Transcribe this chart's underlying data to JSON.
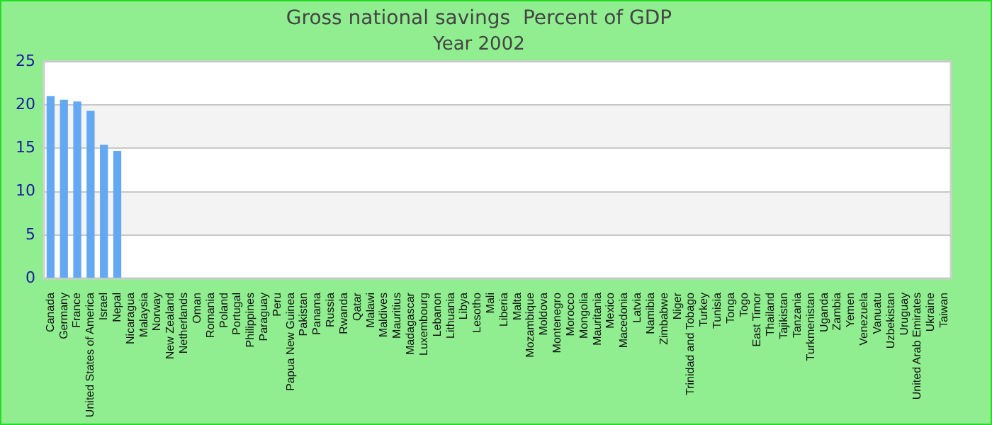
{
  "chart_data": {
    "type": "bar",
    "title": "Gross national savings  Percent of GDP",
    "subtitle": "Year 2002",
    "categories": [
      "Canada",
      "Germany",
      "France",
      "United States of America",
      "Israel",
      "Nepal",
      "Nicaragua",
      "Malaysia",
      "Norway",
      "New Zealand",
      "Netherlands",
      "Oman",
      "Romania",
      "Poland",
      "Portugal",
      "Philippines",
      "Paraguay",
      "Peru",
      "Papua New Guinea",
      "Pakistan",
      "Panama",
      "Russia",
      "Rwanda",
      "Qatar",
      "Malawi",
      "Maldives",
      "Mauritius",
      "Madagascar",
      "Luxembourg",
      "Lebanon",
      "Lithuania",
      "Libya",
      "Lesotho",
      "Mali",
      "Liberia",
      "Malta",
      "Mozambique",
      "Moldova",
      "Montenegro",
      "Morocco",
      "Mongolia",
      "Mauritania",
      "Mexico",
      "Macedonia",
      "Latvia",
      "Namibia",
      "Zimbabwe",
      "Niger",
      "Trinidad and Tobago",
      "Turkey",
      "Tunisia",
      "Tonga",
      "Togo",
      "East Timor",
      "Thailand",
      "Tajikistan",
      "Tanzania",
      "Turkmenistan",
      "Uganda",
      "Zambia",
      "Yemen",
      "Venezuela",
      "Vanuatu",
      "Uzbekistan",
      "Uruguay",
      "United Arab Emirates",
      "Ukraine",
      "Taiwan"
    ],
    "values": [
      21,
      20.6,
      20.4,
      19.3,
      15.4,
      14.7,
      null,
      null,
      null,
      null,
      null,
      null,
      null,
      null,
      null,
      null,
      null,
      null,
      null,
      null,
      null,
      null,
      null,
      null,
      null,
      null,
      null,
      null,
      null,
      null,
      null,
      null,
      null,
      null,
      null,
      null,
      null,
      null,
      null,
      null,
      null,
      null,
      null,
      null,
      null,
      null,
      null,
      null,
      null,
      null,
      null,
      null,
      null,
      null,
      null,
      null,
      null,
      null,
      null,
      null,
      null,
      null,
      null,
      null,
      null,
      null,
      null,
      null
    ],
    "color": "#63a8f2",
    "ylim": [
      0,
      25
    ],
    "yticks": [
      0,
      5,
      10,
      15,
      20,
      25
    ],
    "grid": "y"
  }
}
